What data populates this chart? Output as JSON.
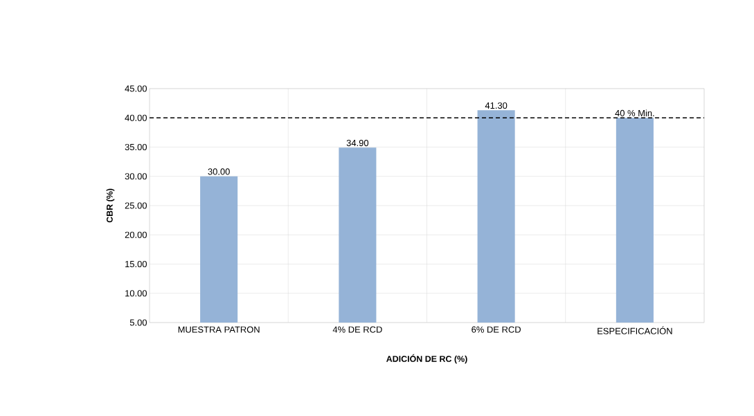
{
  "chart_data": {
    "type": "bar",
    "xlabel": "ADICIÓN DE RC (%)",
    "ylabel": "CBR (%)",
    "categories": [
      "MUESTRA PATRON",
      "4% DE RCD",
      "6% DE RCD",
      "ESPECIFICACIÓN"
    ],
    "values": [
      30.0,
      34.9,
      41.3,
      40.0
    ],
    "color": "#95b3d7",
    "value_labels": [
      "30.00",
      "34.90",
      "41.30",
      "40  % Min."
    ],
    "ylim": [
      5,
      45
    ],
    "yticks": [
      {
        "value": 5,
        "label": "5.00"
      },
      {
        "value": 10,
        "label": "10.00"
      },
      {
        "value": 15,
        "label": "15.00"
      },
      {
        "value": 20,
        "label": "20.00"
      },
      {
        "value": 25,
        "label": "25.00"
      },
      {
        "value": 30,
        "label": "30.00"
      },
      {
        "value": 35,
        "label": "35.00"
      },
      {
        "value": 40,
        "label": "40.00"
      },
      {
        "value": 45,
        "label": "45.00"
      }
    ],
    "ref_lines": [
      {
        "axis": "y",
        "value": 40,
        "color": "#000000",
        "line_style": "dashed"
      }
    ],
    "grid": true
  }
}
